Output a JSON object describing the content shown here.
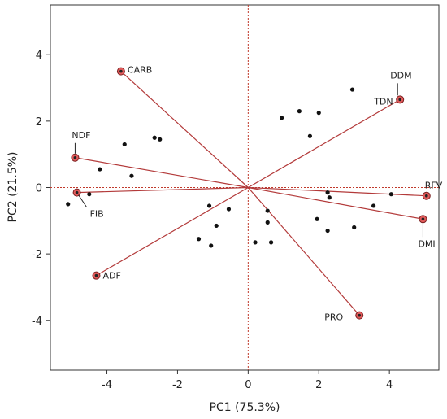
{
  "chart_data": {
    "type": "scatter",
    "title": "",
    "xlabel": "PC1 (75.3%)",
    "ylabel": "PC2  (21.5%)",
    "xlim": [
      -5.6,
      5.4
    ],
    "ylim": [
      -5.5,
      5.5
    ],
    "xticks": [
      -4,
      -2,
      0,
      2,
      4
    ],
    "yticks": [
      -4,
      -2,
      0,
      2,
      4
    ],
    "tick_labels_x": [
      "-4",
      "-2",
      "0",
      "2",
      "4"
    ],
    "tick_labels_y": [
      "4",
      "2",
      "0",
      "-2",
      "-4"
    ],
    "grid": false,
    "reference_lines": {
      "x": 0,
      "y": 0,
      "color": "#c0392b",
      "style": "dotted"
    },
    "colors": {
      "vector": "#b33a3a",
      "vector_tip": "#e05a5a",
      "point": "#111111"
    },
    "vectors": [
      {
        "label": "CARB",
        "x": -3.6,
        "y": 3.5
      },
      {
        "label": "NDF",
        "x": -4.9,
        "y": 0.9
      },
      {
        "label": "FIB",
        "x": -4.85,
        "y": -0.15
      },
      {
        "label": "ADF",
        "x": -4.3,
        "y": -2.65
      },
      {
        "label": "DDM",
        "x": 4.3,
        "y": 2.65
      },
      {
        "label": "TDN",
        "x": 4.3,
        "y": 2.65
      },
      {
        "label": "RFV",
        "x": 5.05,
        "y": -0.25
      },
      {
        "label": "DMI",
        "x": 4.95,
        "y": -0.95
      },
      {
        "label": "PRO",
        "x": 3.15,
        "y": -3.85
      }
    ],
    "points": [
      {
        "x": -5.1,
        "y": -0.5
      },
      {
        "x": -4.5,
        "y": -0.2
      },
      {
        "x": -4.2,
        "y": 0.55
      },
      {
        "x": -3.5,
        "y": 1.3
      },
      {
        "x": -3.3,
        "y": 0.35
      },
      {
        "x": -2.65,
        "y": 1.5
      },
      {
        "x": -2.5,
        "y": 1.45
      },
      {
        "x": -1.1,
        "y": -0.55
      },
      {
        "x": -0.9,
        "y": -1.15
      },
      {
        "x": -0.55,
        "y": -0.65
      },
      {
        "x": -1.4,
        "y": -1.55
      },
      {
        "x": -1.05,
        "y": -1.75
      },
      {
        "x": 0.2,
        "y": -1.65
      },
      {
        "x": 0.55,
        "y": -0.7
      },
      {
        "x": 0.55,
        "y": -1.05
      },
      {
        "x": 0.65,
        "y": -1.65
      },
      {
        "x": 0.95,
        "y": 2.1
      },
      {
        "x": 1.45,
        "y": 2.3
      },
      {
        "x": 1.75,
        "y": 1.55
      },
      {
        "x": 2.0,
        "y": 2.25
      },
      {
        "x": 1.95,
        "y": -0.95
      },
      {
        "x": 2.25,
        "y": -1.3
      },
      {
        "x": 2.25,
        "y": -0.15
      },
      {
        "x": 2.3,
        "y": -0.3
      },
      {
        "x": 2.95,
        "y": 2.95
      },
      {
        "x": 3.0,
        "y": -1.2
      },
      {
        "x": 3.55,
        "y": -0.55
      },
      {
        "x": 4.05,
        "y": -0.2
      }
    ]
  }
}
